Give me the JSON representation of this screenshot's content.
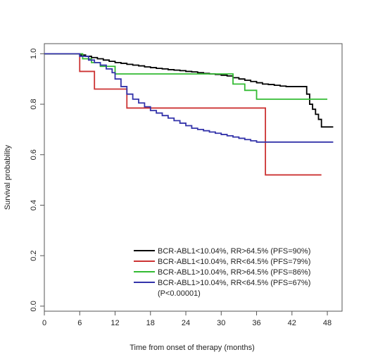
{
  "chart_data": {
    "type": "line",
    "title": "",
    "xlabel": "Time from onset of therapy (months)",
    "ylabel": "Survival probability",
    "xlim": [
      0,
      50.5
    ],
    "ylim": [
      -0.02,
      1.04
    ],
    "xticks": [
      0,
      6,
      12,
      18,
      24,
      30,
      36,
      42,
      48
    ],
    "xtick_labels": [
      "0",
      "6",
      "12",
      "18",
      "24",
      "30",
      "36",
      "42",
      "48"
    ],
    "yticks": [
      0.0,
      0.2,
      0.4,
      0.6,
      0.8,
      1.0
    ],
    "ytick_labels": [
      "0.0",
      "0.2",
      "0.4",
      "0.6",
      "0.8",
      "1.0"
    ],
    "grid": false,
    "legend_position": "bottom-right",
    "annotation": "(P<0.00001)",
    "series": [
      {
        "name": "BCR-ABL1<10.04%, RR>64.5% (PFS=90%)",
        "color": "#000000",
        "step": true,
        "x": [
          0,
          6,
          7,
          8,
          9,
          10,
          11,
          12,
          13,
          14,
          15,
          16,
          17,
          18,
          19,
          20,
          21,
          22,
          23,
          24,
          25,
          26,
          27,
          28,
          29,
          30,
          31,
          32,
          33,
          34,
          35,
          36,
          37,
          38,
          39,
          40,
          41,
          42,
          43,
          44,
          44.5,
          45,
          45.5,
          46,
          46.5,
          47,
          49
        ],
        "y": [
          1.0,
          0.995,
          0.99,
          0.985,
          0.98,
          0.975,
          0.97,
          0.965,
          0.962,
          0.958,
          0.955,
          0.952,
          0.948,
          0.945,
          0.942,
          0.94,
          0.937,
          0.935,
          0.933,
          0.93,
          0.928,
          0.925,
          0.922,
          0.92,
          0.918,
          0.915,
          0.912,
          0.905,
          0.9,
          0.895,
          0.89,
          0.885,
          0.88,
          0.878,
          0.875,
          0.872,
          0.87,
          0.87,
          0.87,
          0.87,
          0.84,
          0.8,
          0.78,
          0.76,
          0.74,
          0.71,
          0.71
        ]
      },
      {
        "name": "BCR-ABL1<10.04%, RR<64.5% (PFS=79%)",
        "color": "#cc3333",
        "step": true,
        "x": [
          0,
          6,
          8.5,
          14,
          37.5,
          47
        ],
        "y": [
          1.0,
          0.93,
          0.86,
          0.785,
          0.52,
          0.52
        ]
      },
      {
        "name": "BCR-ABL1>10.04%, RR>64.5% (PFS=86%)",
        "color": "#33bb33",
        "step": true,
        "x": [
          0,
          6.5,
          8,
          9.5,
          12,
          32,
          34,
          36,
          48
        ],
        "y": [
          1.0,
          0.98,
          0.965,
          0.95,
          0.92,
          0.88,
          0.855,
          0.82,
          0.82
        ]
      },
      {
        "name": "BCR-ABL1>10.04%, RR<64.5% (PFS=67%)",
        "color": "#3333aa",
        "step": true,
        "x": [
          0,
          6,
          7.5,
          8.5,
          9.5,
          10.5,
          11.5,
          12,
          13,
          14,
          15,
          16,
          17,
          18,
          19,
          20,
          21,
          22,
          23,
          24,
          25,
          26,
          27,
          28,
          29,
          30,
          31,
          32,
          33,
          34,
          35,
          36,
          49
        ],
        "y": [
          1.0,
          0.99,
          0.975,
          0.965,
          0.955,
          0.94,
          0.925,
          0.9,
          0.87,
          0.84,
          0.82,
          0.805,
          0.79,
          0.775,
          0.765,
          0.755,
          0.745,
          0.735,
          0.725,
          0.715,
          0.705,
          0.7,
          0.695,
          0.69,
          0.685,
          0.68,
          0.675,
          0.67,
          0.665,
          0.66,
          0.655,
          0.65,
          0.65
        ]
      }
    ]
  }
}
